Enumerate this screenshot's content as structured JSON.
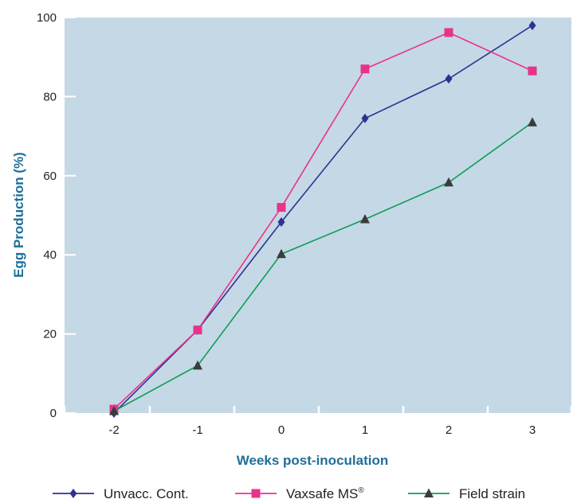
{
  "chart_data": {
    "type": "line",
    "title": "",
    "xlabel": "Weeks post-inoculation",
    "ylabel": "Egg Production (%)",
    "categories": [
      "-2",
      "-1",
      "0",
      "1",
      "2",
      "3"
    ],
    "x": [
      -2,
      -1,
      0,
      1,
      2,
      3
    ],
    "ylim": [
      0,
      100
    ],
    "yticks": [
      0,
      20,
      40,
      60,
      80,
      100
    ],
    "grid": false,
    "legend_position": "bottom",
    "plot_background": "#c5d8e6",
    "series": [
      {
        "name": "Unvacc. Cont.",
        "marker": "diamond",
        "color": "#2e3192",
        "values": [
          0,
          21,
          48.3,
          74.5,
          84.5,
          98
        ]
      },
      {
        "name": "Vaxsafe MS",
        "name_suffix": "®",
        "marker": "square",
        "color": "#e8338b",
        "values": [
          1,
          21,
          52,
          87,
          96.2,
          86.5
        ]
      },
      {
        "name": "Field strain",
        "marker": "triangle",
        "color": "#0f9d58",
        "values": [
          0.5,
          12,
          40.2,
          49,
          58.3,
          73.5
        ]
      }
    ]
  }
}
